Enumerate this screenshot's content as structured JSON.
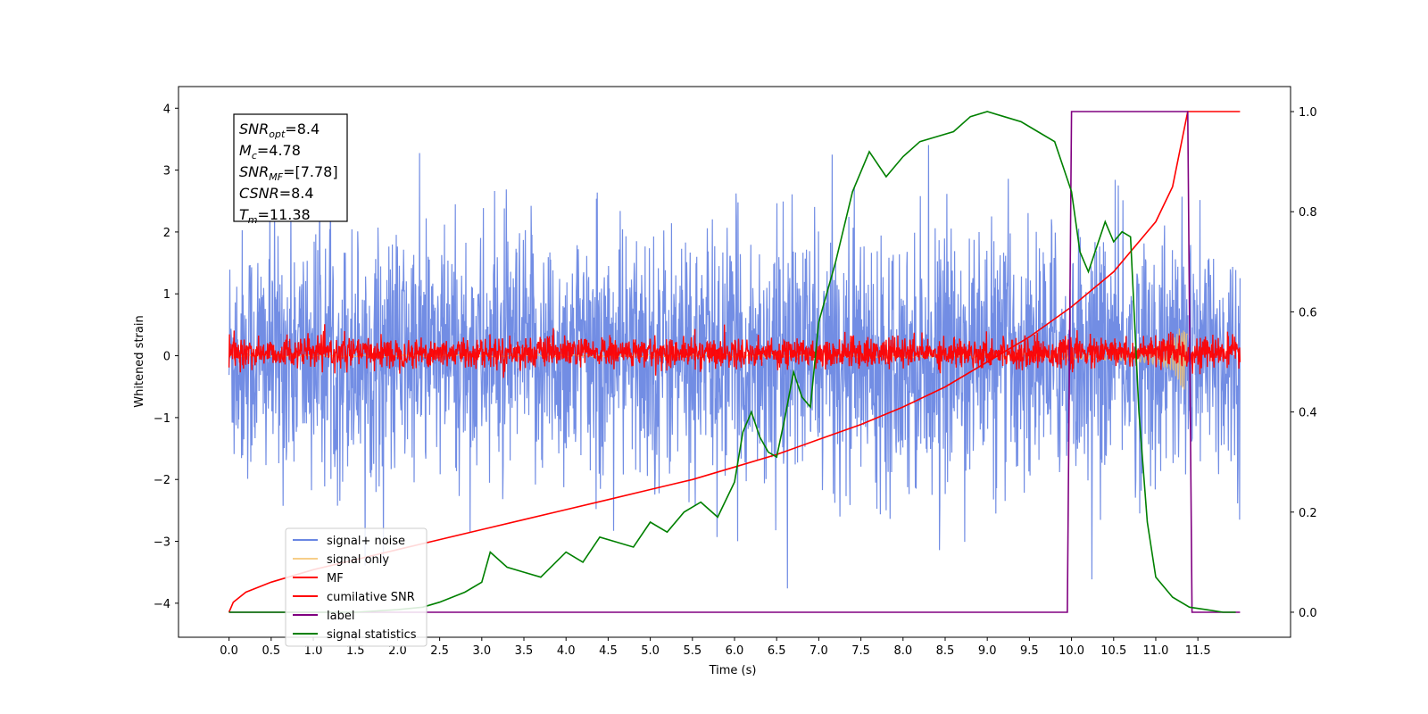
{
  "chart_data": {
    "type": "line",
    "xlabel": "Time (s)",
    "ylabel": "Whitened strain",
    "xlim": [
      -0.6,
      12.6
    ],
    "ylim": [
      -4.55,
      4.35
    ],
    "ylim_right": [
      -0.05,
      1.05
    ],
    "x_ticks": [
      "0.0",
      "0.5",
      "1.0",
      "1.5",
      "2.0",
      "2.5",
      "3.0",
      "3.5",
      "4.0",
      "4.5",
      "5.0",
      "5.5",
      "6.0",
      "6.5",
      "7.0",
      "7.5",
      "8.0",
      "8.5",
      "9.0",
      "9.5",
      "10.0",
      "10.5",
      "11.0",
      "11.5"
    ],
    "y_ticks": [
      "−4",
      "−3",
      "−2",
      "−1",
      "0",
      "1",
      "2",
      "3",
      "4"
    ],
    "y_ticks_right": [
      "0.0",
      "0.2",
      "0.4",
      "0.6",
      "0.8",
      "1.0"
    ],
    "legend_position": "lower-left",
    "grid": false,
    "info_box": [
      {
        "sym": "SNR",
        "sub": "opt",
        "val": "=8.4"
      },
      {
        "sym": "M",
        "sub": "c",
        "val": "=4.78"
      },
      {
        "sym": "SNR",
        "sub": "MF",
        "val": "=[7.78]"
      },
      {
        "sym": "CSNR",
        "sub": "",
        "val": "=8.4"
      },
      {
        "sym": "T",
        "sub": "m",
        "val": "=11.38"
      }
    ],
    "series": [
      {
        "name": "signal+ noise",
        "color": "#6a87e3",
        "axis": "left",
        "kind": "noise",
        "mean": 0.0,
        "amplitude_std": 1.0,
        "x_range": [
          0.0,
          12.0
        ]
      },
      {
        "name": "signal only",
        "color": "#f5c26b",
        "axis": "left",
        "kind": "chirp",
        "x_range": [
          0.0,
          11.38
        ]
      },
      {
        "name": "MF",
        "color": "#ff0000",
        "axis": "left",
        "kind": "noise",
        "mean": 0.05,
        "amplitude_std": 0.12,
        "x_range": [
          0.0,
          12.0
        ]
      },
      {
        "name": "cumilative SNR",
        "color": "#ff0000",
        "axis": "right",
        "x": [
          0.0,
          0.05,
          0.2,
          0.5,
          1.0,
          1.5,
          2.0,
          2.5,
          3.0,
          3.5,
          4.0,
          4.5,
          5.0,
          5.5,
          6.0,
          6.5,
          7.0,
          7.5,
          8.0,
          8.5,
          9.0,
          9.5,
          10.0,
          10.5,
          11.0,
          11.2,
          11.38,
          12.0
        ],
        "y": [
          0.0,
          0.02,
          0.04,
          0.06,
          0.085,
          0.105,
          0.125,
          0.145,
          0.165,
          0.185,
          0.205,
          0.225,
          0.245,
          0.265,
          0.29,
          0.315,
          0.345,
          0.375,
          0.41,
          0.45,
          0.5,
          0.55,
          0.61,
          0.68,
          0.78,
          0.85,
          1.0,
          1.0
        ]
      },
      {
        "name": "label",
        "color": "#800080",
        "axis": "right",
        "x": [
          0.0,
          9.95,
          10.0,
          11.38,
          11.43,
          12.0
        ],
        "y": [
          0.0,
          0.0,
          1.0,
          1.0,
          0.0,
          0.0
        ]
      },
      {
        "name": "signal statistics",
        "color": "#008000",
        "axis": "right",
        "x": [
          0.0,
          0.5,
          1.0,
          1.5,
          2.0,
          2.3,
          2.5,
          2.8,
          3.0,
          3.1,
          3.3,
          3.5,
          3.7,
          4.0,
          4.2,
          4.4,
          4.6,
          4.8,
          5.0,
          5.2,
          5.4,
          5.6,
          5.8,
          6.0,
          6.1,
          6.2,
          6.3,
          6.4,
          6.5,
          6.6,
          6.7,
          6.8,
          6.9,
          7.0,
          7.2,
          7.4,
          7.6,
          7.8,
          8.0,
          8.2,
          8.4,
          8.6,
          8.8,
          9.0,
          9.2,
          9.4,
          9.6,
          9.8,
          10.0,
          10.1,
          10.2,
          10.4,
          10.5,
          10.6,
          10.7,
          10.8,
          10.9,
          11.0,
          11.2,
          11.4,
          11.6,
          11.8,
          11.95
        ],
        "y": [
          0.0,
          0.0,
          0.0,
          0.0,
          0.005,
          0.01,
          0.02,
          0.04,
          0.06,
          0.12,
          0.09,
          0.08,
          0.07,
          0.12,
          0.1,
          0.15,
          0.14,
          0.13,
          0.18,
          0.16,
          0.2,
          0.22,
          0.19,
          0.26,
          0.36,
          0.4,
          0.35,
          0.32,
          0.31,
          0.39,
          0.48,
          0.43,
          0.41,
          0.58,
          0.7,
          0.84,
          0.92,
          0.87,
          0.91,
          0.94,
          0.95,
          0.96,
          0.99,
          1.0,
          0.99,
          0.98,
          0.96,
          0.94,
          0.84,
          0.72,
          0.68,
          0.78,
          0.74,
          0.76,
          0.75,
          0.4,
          0.18,
          0.07,
          0.03,
          0.01,
          0.005,
          0.0,
          0.0
        ]
      }
    ]
  }
}
